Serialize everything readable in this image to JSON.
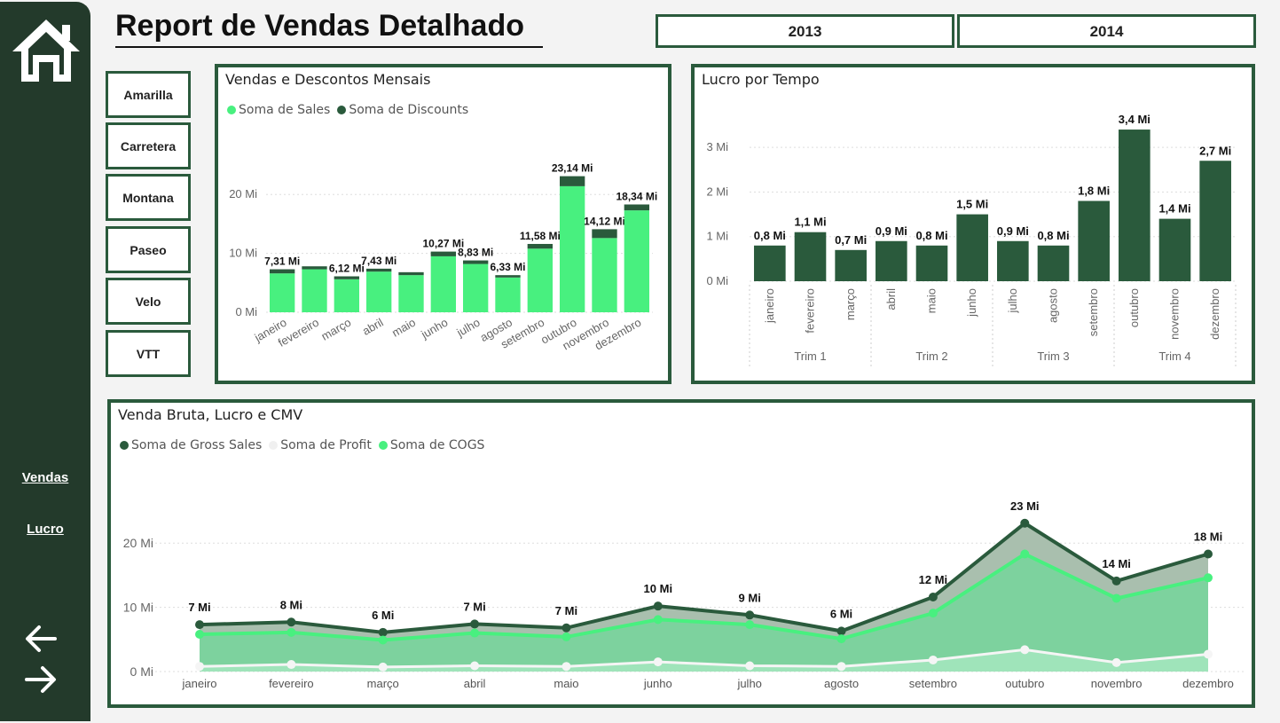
{
  "header": {
    "title": "Report de Vendas Detalhado"
  },
  "years": [
    "2013",
    "2014"
  ],
  "segments": [
    "Amarilla",
    "Carretera",
    "Montana",
    "Paseo",
    "Velo",
    "VTT"
  ],
  "nav": {
    "sales": "Vendas ",
    "profit": "Lucro"
  },
  "icons": {
    "home": "home-icon",
    "back": "arrow-left-icon",
    "forward": "arrow-right-icon"
  },
  "colors": {
    "sidebar": "#233a2b",
    "dark_green": "#2a5a3c",
    "light_green": "#48f07f",
    "profit_white": "#f5f5f5",
    "gross_area": "#a9bfae",
    "cogs_area": "#7dd29e"
  },
  "chart_data": [
    {
      "type": "bar",
      "title": "Vendas e Descontos Mensais",
      "stacked": true,
      "categories": [
        "janeiro",
        "fevereiro",
        "março",
        "abril",
        "maio",
        "junho",
        "julho",
        "agosto",
        "setembro",
        "outubro",
        "novembro",
        "dezembro"
      ],
      "series": [
        {
          "name": "Soma de  Sales",
          "values": [
            6.6,
            7.3,
            5.6,
            6.9,
            6.3,
            9.5,
            8.2,
            5.9,
            10.8,
            21.4,
            12.6,
            17.3
          ]
        },
        {
          "name": "Soma de Discounts",
          "values": [
            0.7,
            0.5,
            0.5,
            0.5,
            0.5,
            0.8,
            0.6,
            0.4,
            0.8,
            1.7,
            1.5,
            1.0
          ]
        }
      ],
      "data_labels": [
        "7,31 Mi",
        "",
        "6,12 Mi",
        "7,43 Mi",
        "",
        "10,27 Mi",
        "8,83 Mi",
        "6,33 Mi",
        "11,58 Mi",
        "23,14 Mi",
        "14,12 Mi",
        "18,34 Mi"
      ],
      "y_ticks": [
        "0 Mi",
        "10 Mi",
        "20 Mi"
      ],
      "ylim": [
        0,
        25
      ],
      "legend": "top-left"
    },
    {
      "type": "bar",
      "title": "Lucro por Tempo",
      "categories": [
        "janeiro",
        "fevereiro",
        "março",
        "abril",
        "maio",
        "junho",
        "julho",
        "agosto",
        "setembro",
        "outubro",
        "novembro",
        "dezembro"
      ],
      "groups": [
        "Trim 1",
        "Trim 2",
        "Trim 3",
        "Trim 4"
      ],
      "values": [
        0.8,
        1.1,
        0.7,
        0.9,
        0.8,
        1.5,
        0.9,
        0.8,
        1.8,
        3.4,
        1.4,
        2.7
      ],
      "data_labels": [
        "0,8 Mi",
        "1,1 Mi",
        "0,7 Mi",
        "0,9 Mi",
        "0,8 Mi",
        "1,5 Mi",
        "0,9 Mi",
        "0,8 Mi",
        "1,8 Mi",
        "3,4 Mi",
        "1,4 Mi",
        "2,7 Mi"
      ],
      "y_ticks": [
        "0 Mi",
        "1 Mi",
        "2 Mi",
        "3 Mi"
      ],
      "ylim": [
        0,
        3.6
      ]
    },
    {
      "type": "area",
      "title": "Venda Bruta, Lucro e CMV",
      "categories": [
        "janeiro",
        "fevereiro",
        "março",
        "abril",
        "maio",
        "junho",
        "julho",
        "agosto",
        "setembro",
        "outubro",
        "novembro",
        "dezembro"
      ],
      "series": [
        {
          "name": "Soma de Gross Sales",
          "values": [
            7.3,
            7.7,
            6.1,
            7.4,
            6.8,
            10.2,
            8.8,
            6.3,
            11.6,
            23.1,
            14.1,
            18.3
          ]
        },
        {
          "name": "Soma de Profit",
          "values": [
            0.8,
            1.1,
            0.7,
            0.9,
            0.8,
            1.5,
            0.9,
            0.8,
            1.8,
            3.4,
            1.4,
            2.7
          ]
        },
        {
          "name": "Soma de COGS",
          "values": [
            5.8,
            6.1,
            4.9,
            6.0,
            5.4,
            8.1,
            7.3,
            5.1,
            9.1,
            18.3,
            11.4,
            14.6
          ]
        }
      ],
      "data_labels": [
        "7 Mi",
        "8 Mi",
        "6 Mi",
        "7 Mi",
        "7 Mi",
        "10 Mi",
        "9 Mi",
        "6 Mi",
        "12 Mi",
        "23 Mi",
        "14 Mi",
        "18 Mi"
      ],
      "y_ticks": [
        "0 Mi",
        "10 Mi",
        "20 Mi"
      ],
      "ylim": [
        0,
        25
      ],
      "legend": "top-left"
    }
  ]
}
